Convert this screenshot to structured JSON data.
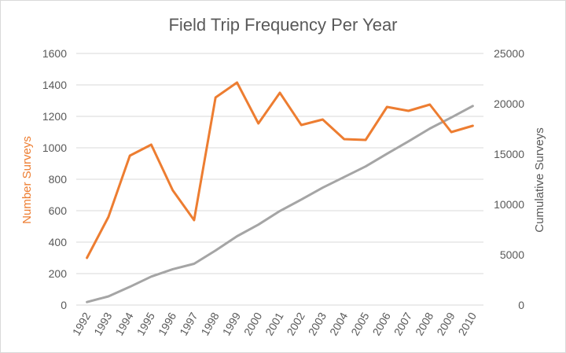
{
  "chart_data": {
    "type": "line",
    "title": "Field Trip Frequency Per Year",
    "categories": [
      "1992",
      "1993",
      "1994",
      "1995",
      "1996",
      "1997",
      "1998",
      "1999",
      "2000",
      "2001",
      "2002",
      "2003",
      "2004",
      "2005",
      "2006",
      "2007",
      "2008",
      "2009",
      "2010"
    ],
    "y_left": {
      "label": "Number Surveys",
      "range": [
        0,
        1600
      ],
      "ticks": [
        "0",
        "200",
        "400",
        "600",
        "800",
        "1000",
        "1200",
        "1400",
        "1600"
      ]
    },
    "y_right": {
      "label": "Cumulative Surveys",
      "range": [
        0,
        25000
      ],
      "ticks": [
        "0",
        "5000",
        "10000",
        "15000",
        "20000",
        "25000"
      ]
    },
    "series": [
      {
        "name": "Number Surveys",
        "axis": "left",
        "color": "#ed7d31",
        "values": [
          300,
          560,
          950,
          1020,
          730,
          540,
          1320,
          1415,
          1155,
          1350,
          1145,
          1180,
          1055,
          1050,
          1260,
          1235,
          1275,
          1100,
          1140
        ]
      },
      {
        "name": "Cumulative Surveys",
        "axis": "right",
        "color": "#a5a5a5",
        "values": [
          300,
          860,
          1810,
          2830,
          3560,
          4100,
          5420,
          6835,
          7990,
          9340,
          10485,
          11665,
          12720,
          13770,
          15030,
          16265,
          17540,
          18640,
          19780
        ]
      }
    ],
    "grid": true,
    "legend": "none"
  },
  "colors": {
    "left_axis_title": "#ed7d31",
    "right_axis_title": "#595959",
    "tick_text": "#595959",
    "gridline": "#d9d9d9"
  }
}
